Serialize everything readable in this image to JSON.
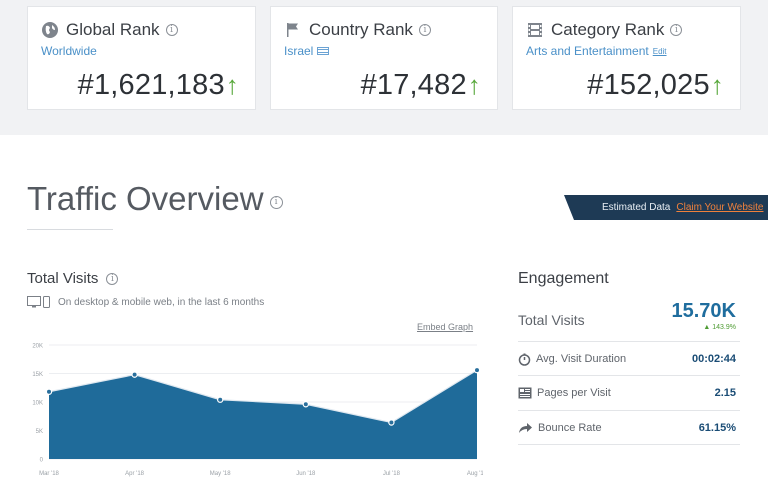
{
  "ranks": [
    {
      "title": "Global Rank",
      "icon": "globe-icon",
      "subtitle": "Worldwide",
      "value": "#1,621,183",
      "trend": "↑"
    },
    {
      "title": "Country Rank",
      "icon": "flag-icon",
      "subtitle": "Israel",
      "value": "#17,482",
      "trend": "↑"
    },
    {
      "title": "Category Rank",
      "icon": "film-icon",
      "subtitle": "Arts and Entertainment",
      "edit_label": "Edit",
      "value": "#152,025",
      "trend": "↑"
    }
  ],
  "overview": {
    "title": "Traffic Overview",
    "banner_text": "Estimated Data",
    "banner_link": "Claim Your Website"
  },
  "total_visits": {
    "title": "Total Visits",
    "subtitle": "On desktop & mobile web, in the last 6 months",
    "embed_label": "Embed Graph"
  },
  "chart_data": {
    "type": "area",
    "categories": [
      "Mar '18",
      "Apr '18",
      "May '18",
      "Jun '18",
      "Jul '18",
      "Aug '18"
    ],
    "series": [
      {
        "values": [
          11800,
          14800,
          10400,
          9600,
          6400,
          15600
        ]
      }
    ],
    "yticks": [
      "20K",
      "15K",
      "10K",
      "5K",
      "0"
    ],
    "ylim": [
      0,
      20000
    ],
    "color": "#1f6b9a"
  },
  "engagement": {
    "title": "Engagement",
    "total_visits_label": "Total Visits",
    "total_visits_value": "15.70K",
    "total_visits_change": "▲ 143.9%",
    "rows": [
      {
        "label": "Avg. Visit Duration",
        "value": "00:02:44",
        "icon": "stopwatch-icon"
      },
      {
        "label": "Pages per Visit",
        "value": "2.15",
        "icon": "pages-icon"
      },
      {
        "label": "Bounce Rate",
        "value": "61.15%",
        "icon": "bounce-arrow-icon"
      }
    ]
  }
}
